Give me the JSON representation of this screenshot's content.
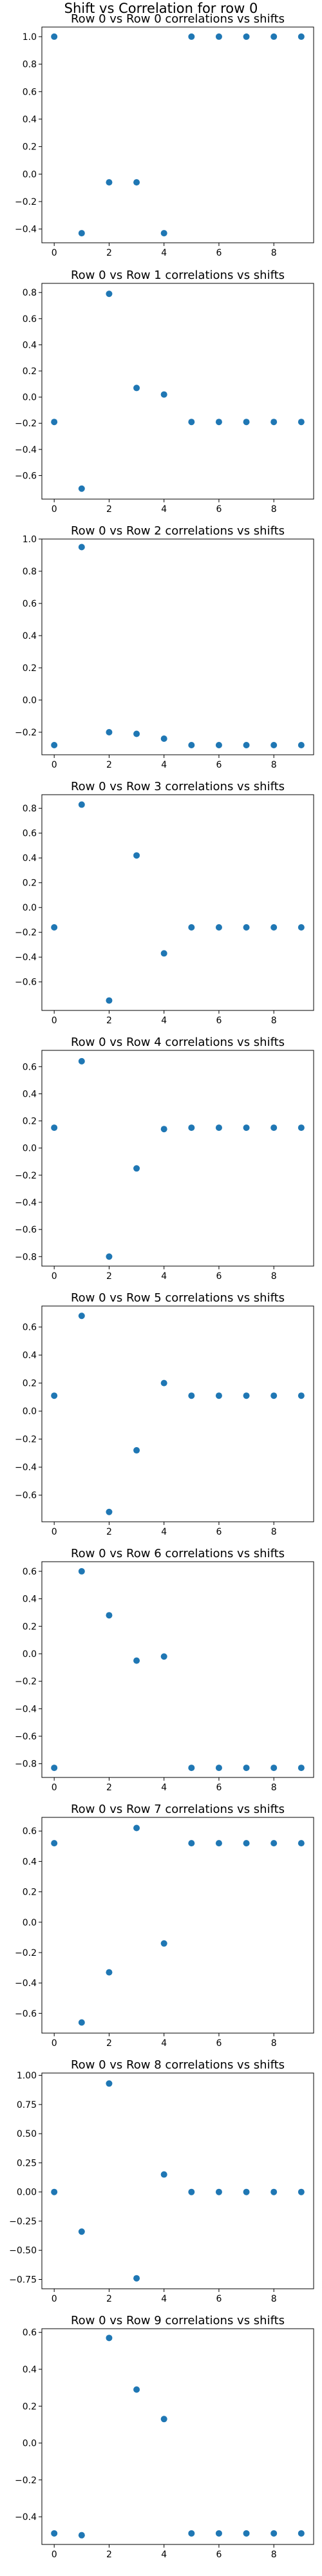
{
  "figure": {
    "title": "Shift vs Correlation for row 0",
    "marker_color": "#1f77b4"
  },
  "chart_data": [
    {
      "type": "scatter",
      "title": "Row 0 vs Row 0 correlations vs shifts",
      "x": [
        0,
        1,
        2,
        3,
        4,
        5,
        6,
        7,
        8,
        9
      ],
      "y": [
        1.0,
        -0.43,
        -0.06,
        -0.06,
        -0.43,
        1.0,
        1.0,
        1.0,
        1.0,
        1.0
      ],
      "ylim": [
        -0.5,
        1.07
      ],
      "yticks": [
        -0.4,
        -0.2,
        0.0,
        0.2,
        0.4,
        0.6,
        0.8,
        1.0
      ],
      "xticks": [
        0,
        2,
        4,
        6,
        8
      ],
      "xlim": [
        -0.45,
        9.45
      ],
      "grid": false
    },
    {
      "type": "scatter",
      "title": "Row 0 vs Row 1 correlations vs shifts",
      "x": [
        0,
        1,
        2,
        3,
        4,
        5,
        6,
        7,
        8,
        9
      ],
      "y": [
        -0.19,
        -0.7,
        0.79,
        0.07,
        0.02,
        -0.19,
        -0.19,
        -0.19,
        -0.19,
        -0.19
      ],
      "ylim": [
        -0.78,
        0.87
      ],
      "yticks": [
        -0.6,
        -0.4,
        -0.2,
        0.0,
        0.2,
        0.4,
        0.6,
        0.8
      ],
      "xticks": [
        0,
        2,
        4,
        6,
        8
      ],
      "xlim": [
        -0.45,
        9.45
      ],
      "grid": false
    },
    {
      "type": "scatter",
      "title": "Row 0 vs Row 2 correlations vs shifts",
      "x": [
        0,
        1,
        2,
        3,
        4,
        5,
        6,
        7,
        8,
        9
      ],
      "y": [
        -0.28,
        0.95,
        -0.2,
        -0.21,
        -0.24,
        -0.28,
        -0.28,
        -0.28,
        -0.28,
        -0.28
      ],
      "ylim": [
        -0.34,
        1.0
      ],
      "yticks": [
        -0.2,
        0.0,
        0.2,
        0.4,
        0.6,
        0.8,
        1.0
      ],
      "xticks": [
        0,
        2,
        4,
        6,
        8
      ],
      "xlim": [
        -0.45,
        9.45
      ],
      "grid": false
    },
    {
      "type": "scatter",
      "title": "Row 0 vs Row 3 correlations vs shifts",
      "x": [
        0,
        1,
        2,
        3,
        4,
        5,
        6,
        7,
        8,
        9
      ],
      "y": [
        -0.16,
        0.83,
        -0.75,
        0.42,
        -0.37,
        -0.16,
        -0.16,
        -0.16,
        -0.16,
        -0.16
      ],
      "ylim": [
        -0.83,
        0.91
      ],
      "yticks": [
        -0.6,
        -0.4,
        -0.2,
        0.0,
        0.2,
        0.4,
        0.6,
        0.8
      ],
      "xticks": [
        0,
        2,
        4,
        6,
        8
      ],
      "xlim": [
        -0.45,
        9.45
      ],
      "grid": false
    },
    {
      "type": "scatter",
      "title": "Row 0 vs Row 4 correlations vs shifts",
      "x": [
        0,
        1,
        2,
        3,
        4,
        5,
        6,
        7,
        8,
        9
      ],
      "y": [
        0.15,
        0.64,
        -0.8,
        -0.15,
        0.14,
        0.15,
        0.15,
        0.15,
        0.15,
        0.15
      ],
      "ylim": [
        -0.87,
        0.72
      ],
      "yticks": [
        -0.8,
        -0.6,
        -0.4,
        -0.2,
        0.0,
        0.2,
        0.4,
        0.6
      ],
      "xticks": [
        0,
        2,
        4,
        6,
        8
      ],
      "xlim": [
        -0.45,
        9.45
      ],
      "grid": false
    },
    {
      "type": "scatter",
      "title": "Row 0 vs Row 5 correlations vs shifts",
      "x": [
        0,
        1,
        2,
        3,
        4,
        5,
        6,
        7,
        8,
        9
      ],
      "y": [
        0.11,
        0.68,
        -0.72,
        -0.28,
        0.2,
        0.11,
        0.11,
        0.11,
        0.11,
        0.11
      ],
      "ylim": [
        -0.79,
        0.75
      ],
      "yticks": [
        -0.6,
        -0.4,
        -0.2,
        0.0,
        0.2,
        0.4,
        0.6
      ],
      "xticks": [
        0,
        2,
        4,
        6,
        8
      ],
      "xlim": [
        -0.45,
        9.45
      ],
      "grid": false
    },
    {
      "type": "scatter",
      "title": "Row 0 vs Row 6 correlations vs shifts",
      "x": [
        0,
        1,
        2,
        3,
        4,
        5,
        6,
        7,
        8,
        9
      ],
      "y": [
        -0.83,
        0.6,
        0.28,
        -0.05,
        -0.02,
        -0.83,
        -0.83,
        -0.83,
        -0.83,
        -0.83
      ],
      "ylim": [
        -0.9,
        0.67
      ],
      "yticks": [
        -0.8,
        -0.6,
        -0.4,
        -0.2,
        0.0,
        0.2,
        0.4,
        0.6
      ],
      "xticks": [
        0,
        2,
        4,
        6,
        8
      ],
      "xlim": [
        -0.45,
        9.45
      ],
      "grid": false
    },
    {
      "type": "scatter",
      "title": "Row 0 vs Row 7 correlations vs shifts",
      "x": [
        0,
        1,
        2,
        3,
        4,
        5,
        6,
        7,
        8,
        9
      ],
      "y": [
        0.52,
        -0.66,
        -0.33,
        0.62,
        -0.14,
        0.52,
        0.52,
        0.52,
        0.52,
        0.52
      ],
      "ylim": [
        -0.73,
        0.69
      ],
      "yticks": [
        -0.6,
        -0.4,
        -0.2,
        0.0,
        0.2,
        0.4,
        0.6
      ],
      "xticks": [
        0,
        2,
        4,
        6,
        8
      ],
      "xlim": [
        -0.45,
        9.45
      ],
      "grid": false
    },
    {
      "type": "scatter",
      "title": "Row 0 vs Row 8 correlations vs shifts",
      "x": [
        0,
        1,
        2,
        3,
        4,
        5,
        6,
        7,
        8,
        9
      ],
      "y": [
        0.0,
        -0.34,
        0.93,
        -0.74,
        0.15,
        0.0,
        0.0,
        0.0,
        0.0,
        0.0
      ],
      "ylim": [
        -0.83,
        1.02
      ],
      "yticks": [
        -0.75,
        -0.5,
        -0.25,
        0.0,
        0.25,
        0.5,
        0.75,
        1.0
      ],
      "xticks": [
        0,
        2,
        4,
        6,
        8
      ],
      "xlim": [
        -0.45,
        9.45
      ],
      "grid": false
    },
    {
      "type": "scatter",
      "title": "Row 0 vs Row 9 correlations vs shifts",
      "x": [
        0,
        1,
        2,
        3,
        4,
        5,
        6,
        7,
        8,
        9
      ],
      "y": [
        -0.49,
        -0.5,
        0.57,
        0.29,
        0.13,
        -0.49,
        -0.49,
        -0.49,
        -0.49,
        -0.49
      ],
      "ylim": [
        -0.55,
        0.62
      ],
      "yticks": [
        -0.4,
        -0.2,
        0.0,
        0.2,
        0.4,
        0.6
      ],
      "xticks": [
        0,
        2,
        4,
        6,
        8
      ],
      "xlim": [
        -0.45,
        9.45
      ],
      "grid": false
    }
  ]
}
